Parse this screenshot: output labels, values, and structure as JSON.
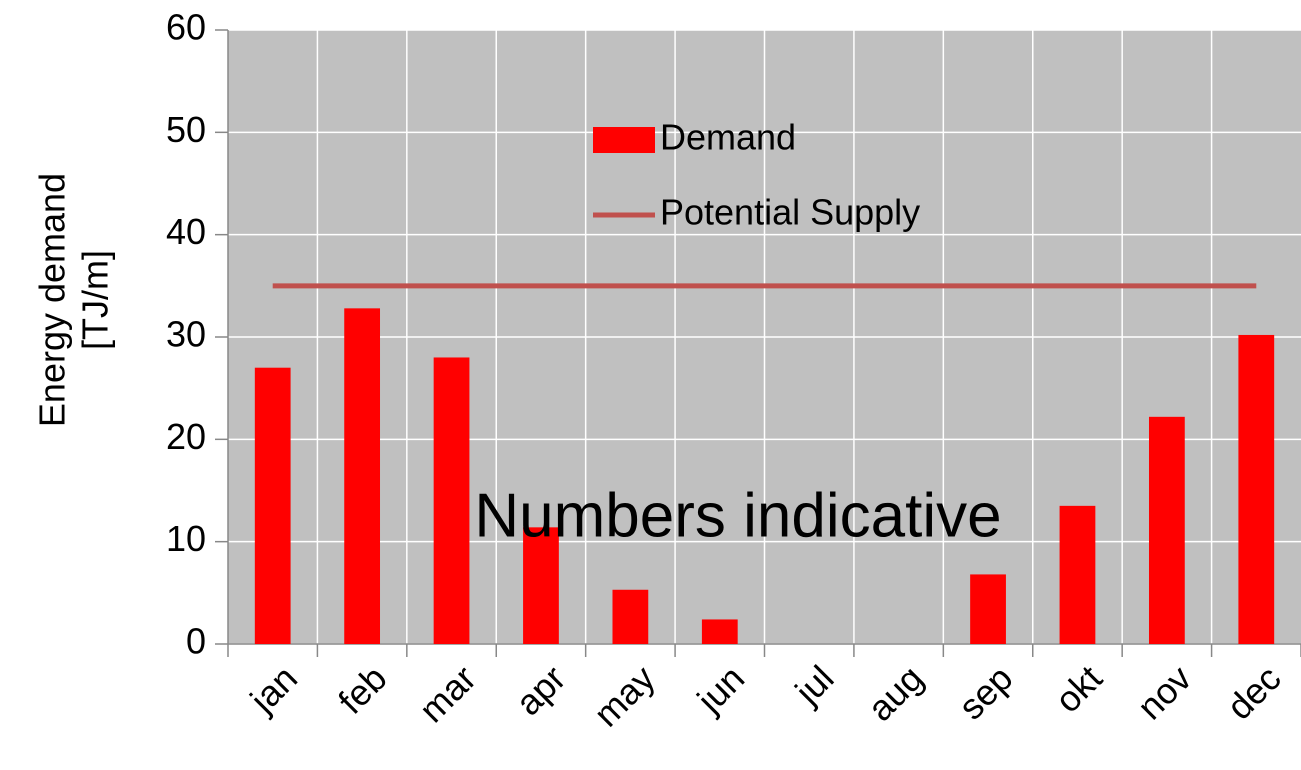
{
  "chart_data": {
    "type": "bar",
    "y_label": [
      "Energy demand",
      "[TJ/m]"
    ],
    "annotation": "Numbers indicative",
    "categories": [
      "jan",
      "feb",
      "mar",
      "apr",
      "may",
      "jun",
      "jul",
      "aug",
      "sep",
      "okt",
      "nov",
      "dec"
    ],
    "series": [
      {
        "name": "Demand",
        "type": "bar",
        "color": "#ff0000",
        "values": [
          27,
          32.8,
          28,
          11.4,
          5.3,
          2.4,
          0,
          0,
          6.8,
          13.5,
          22.2,
          30.2
        ]
      },
      {
        "name": "Potential Supply",
        "type": "line",
        "color": "#c0504d",
        "values": [
          35,
          35,
          35,
          35,
          35,
          35,
          35,
          35,
          35,
          35,
          35,
          35
        ]
      }
    ],
    "ylim": [
      0,
      60
    ],
    "yticks": [
      0,
      10,
      20,
      30,
      40,
      50,
      60
    ],
    "grid": true,
    "legend": "top"
  }
}
